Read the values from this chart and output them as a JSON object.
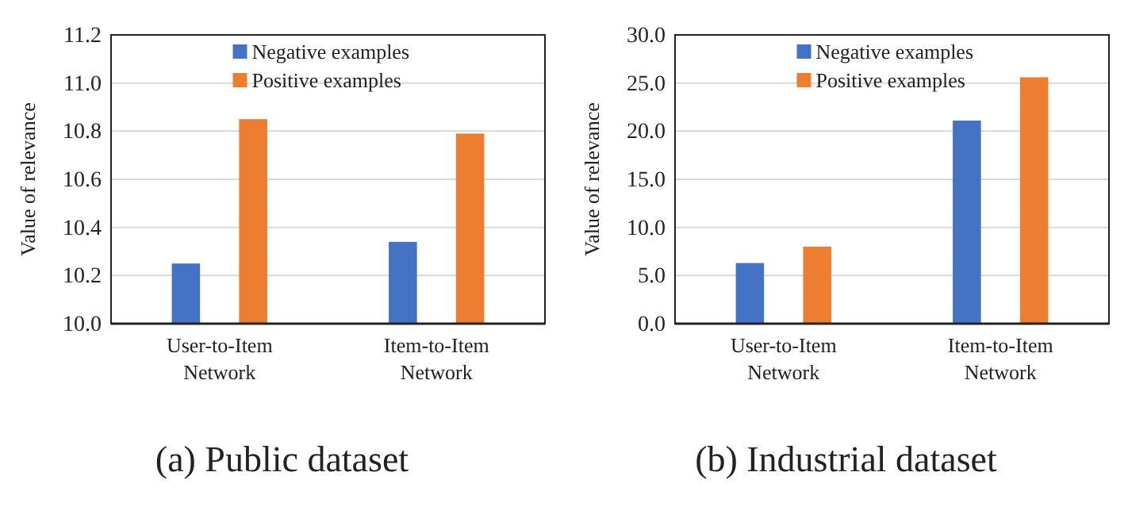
{
  "chart_data": [
    {
      "type": "bar",
      "title": "(a) Public dataset",
      "ylabel": "Value of relevance",
      "categories": [
        "User-to-Item Network",
        "Item-to-Item Network"
      ],
      "series": [
        {
          "name": "Negative examples",
          "color": "#4472c4",
          "values": [
            10.25,
            10.34
          ]
        },
        {
          "name": "Positive examples",
          "color": "#ed7d31",
          "values": [
            10.85,
            10.79
          ]
        }
      ],
      "ylim": [
        10.0,
        11.2
      ],
      "yticks": [
        {
          "value": 10.0,
          "label": "10.0"
        },
        10.2,
        10.4,
        10.6,
        10.8,
        {
          "value": 11.0,
          "label": "11.0"
        },
        11.2
      ],
      "grid": "y",
      "legend": "top"
    },
    {
      "type": "bar",
      "title": "(b) Industrial dataset",
      "ylabel": "Value of relevance",
      "categories": [
        "User-to-Item Network",
        "Item-to-Item Network"
      ],
      "series": [
        {
          "name": "Negative examples",
          "color": "#4472c4",
          "values": [
            6.3,
            21.1
          ]
        },
        {
          "name": "Positive examples",
          "color": "#ed7d31",
          "values": [
            8.0,
            25.6
          ]
        }
      ],
      "ylim": [
        0.0,
        30.0
      ],
      "yticks": [
        {
          "value": 0,
          "label": "0.0"
        },
        {
          "value": 5,
          "label": "5.0"
        },
        {
          "value": 10,
          "label": "10.0"
        },
        {
          "value": 15,
          "label": "15.0"
        },
        {
          "value": 20,
          "label": "20.0"
        },
        {
          "value": 25,
          "label": "25.0"
        },
        {
          "value": 30,
          "label": "30.0"
        }
      ],
      "grid": "y",
      "legend": "top"
    }
  ]
}
